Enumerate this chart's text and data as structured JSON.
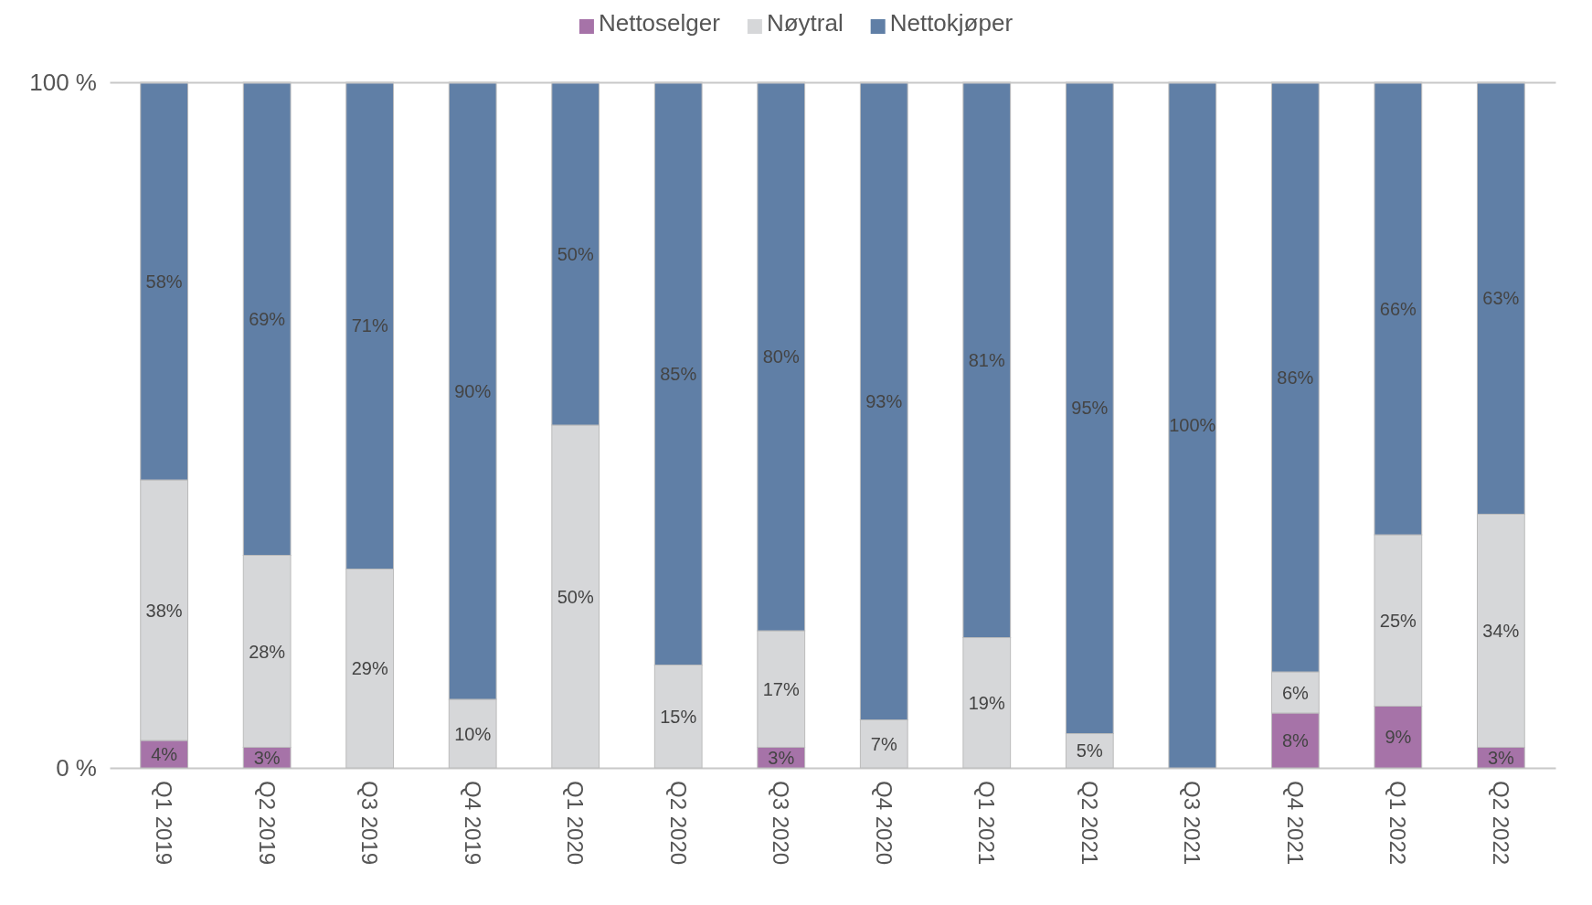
{
  "chart_data": {
    "type": "bar",
    "stacked": true,
    "categories": [
      "Q1 2019",
      "Q2 2019",
      "Q3 2019",
      "Q4 2019",
      "Q1 2020",
      "Q2 2020",
      "Q3 2020",
      "Q4 2020",
      "Q1 2021",
      "Q2 2021",
      "Q3 2021",
      "Q4 2021",
      "Q1 2022",
      "Q2 2022"
    ],
    "series": [
      {
        "name": "Nettoselger",
        "color": "#a673a8",
        "values": [
          4,
          3,
          0,
          0,
          0,
          0,
          3,
          0,
          0,
          0,
          0,
          8,
          9,
          3
        ],
        "value_labels": [
          "4%",
          "3%",
          null,
          null,
          null,
          null,
          "3%",
          null,
          null,
          null,
          null,
          "8%",
          "9%",
          "3%"
        ]
      },
      {
        "name": "Nøytral",
        "color": "#d6d7d9",
        "values": [
          38,
          28,
          29,
          10,
          50,
          15,
          17,
          7,
          19,
          5,
          0,
          6,
          25,
          34
        ],
        "value_labels": [
          "38%",
          "28%",
          "29%",
          "10%",
          "50%",
          "15%",
          "17%",
          "7%",
          "19%",
          "5%",
          null,
          "6%",
          "25%",
          "34%"
        ]
      },
      {
        "name": "Nettokjøper",
        "color": "#607fa6",
        "values": [
          58,
          69,
          71,
          90,
          50,
          85,
          80,
          93,
          81,
          95,
          100,
          86,
          66,
          63
        ],
        "value_labels": [
          "58%",
          "69%",
          "71%",
          "90%",
          "50%",
          "85%",
          "80%",
          "93%",
          "81%",
          "95%",
          "100%",
          "86%",
          "66%",
          "63%"
        ]
      }
    ],
    "ylim": [
      0,
      100
    ],
    "yticks": [
      {
        "value": 0,
        "label": "0 %"
      },
      {
        "value": 100,
        "label": "100 %"
      }
    ],
    "legend": "top"
  }
}
